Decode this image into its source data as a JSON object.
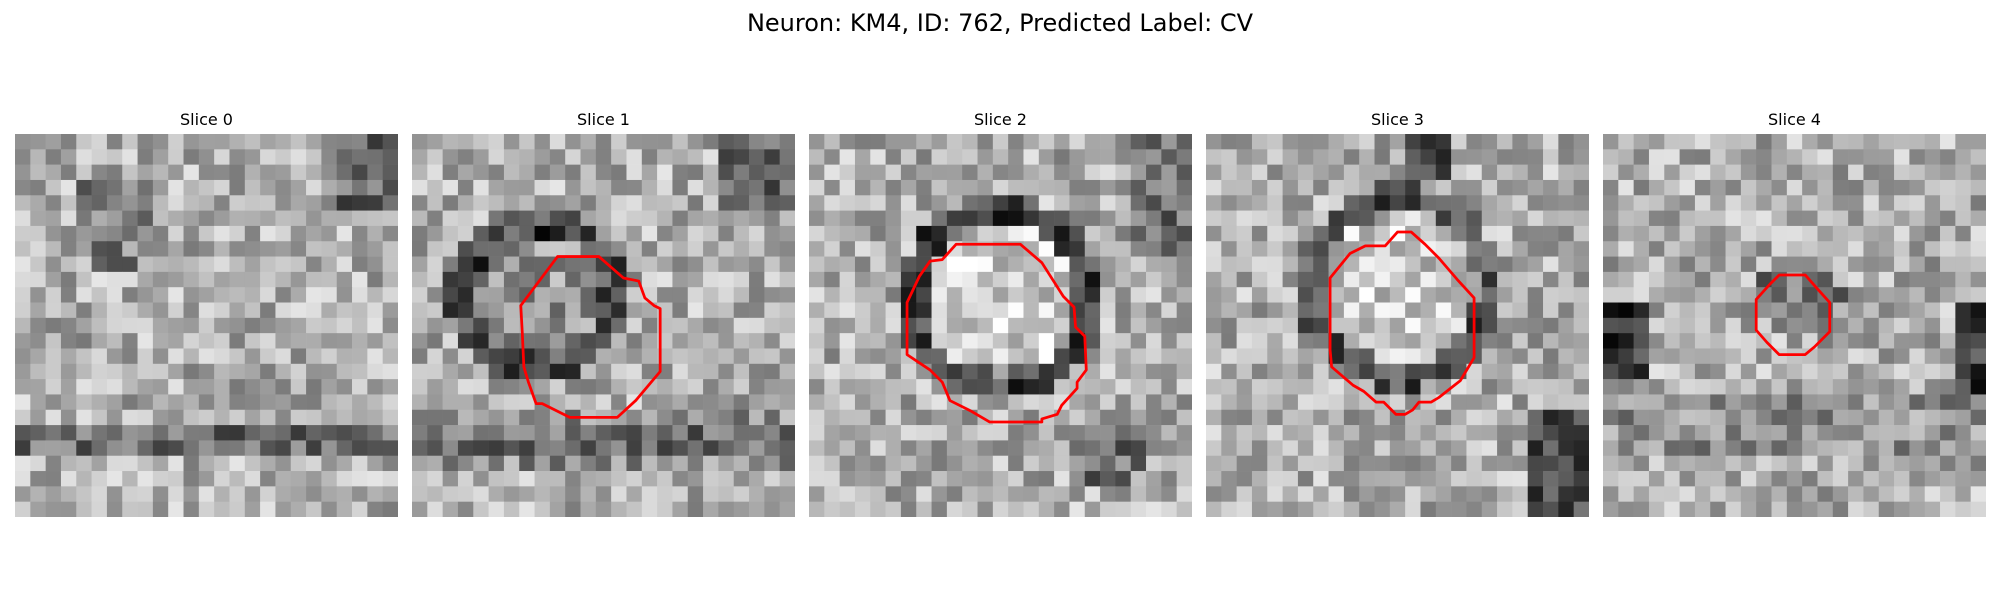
{
  "title": "Neuron: KM4, ID: 762, Predicted Label: CV",
  "contour_color": "#ff0000",
  "panels": [
    {
      "label": "Slice 0",
      "has_contour": false,
      "seed": 11
    },
    {
      "label": "Slice 1",
      "has_contour": true,
      "seed": 23
    },
    {
      "label": "Slice 2",
      "has_contour": true,
      "seed": 37
    },
    {
      "label": "Slice 3",
      "has_contour": true,
      "seed": 53
    },
    {
      "label": "Slice 4",
      "has_contour": true,
      "seed": 71
    }
  ]
}
